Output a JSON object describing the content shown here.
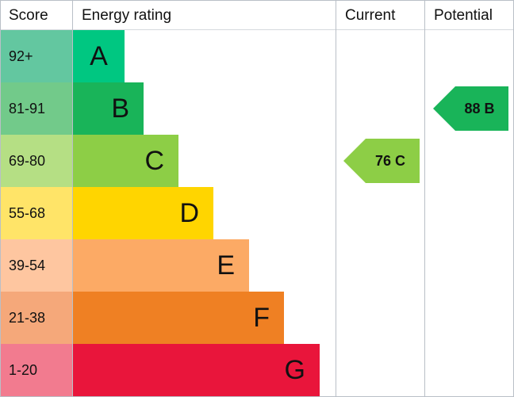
{
  "header": {
    "score": "Score",
    "rating": "Energy rating",
    "current": "Current",
    "potential": "Potential"
  },
  "chart_data": {
    "type": "bar",
    "bands": [
      {
        "letter": "A",
        "range": "92+",
        "color": "#00c781",
        "score_color": "#63c7a0"
      },
      {
        "letter": "B",
        "range": "81-91",
        "color": "#19b459",
        "score_color": "#72ca8a"
      },
      {
        "letter": "C",
        "range": "69-80",
        "color": "#8dce46",
        "score_color": "#b5df84"
      },
      {
        "letter": "D",
        "range": "55-68",
        "color": "#ffd500",
        "score_color": "#ffe468"
      },
      {
        "letter": "E",
        "range": "39-54",
        "color": "#fcaa65",
        "score_color": "#fec6a0"
      },
      {
        "letter": "F",
        "range": "21-38",
        "color": "#ef8023",
        "score_color": "#f5a87a"
      },
      {
        "letter": "G",
        "range": "1-20",
        "color": "#e9153b",
        "score_color": "#f27b8f"
      }
    ],
    "current": {
      "value": 76,
      "letter": "C",
      "label": "76 C",
      "color": "#8dce46"
    },
    "potential": {
      "value": 88,
      "letter": "B",
      "label": "88 B",
      "color": "#19b459"
    }
  }
}
